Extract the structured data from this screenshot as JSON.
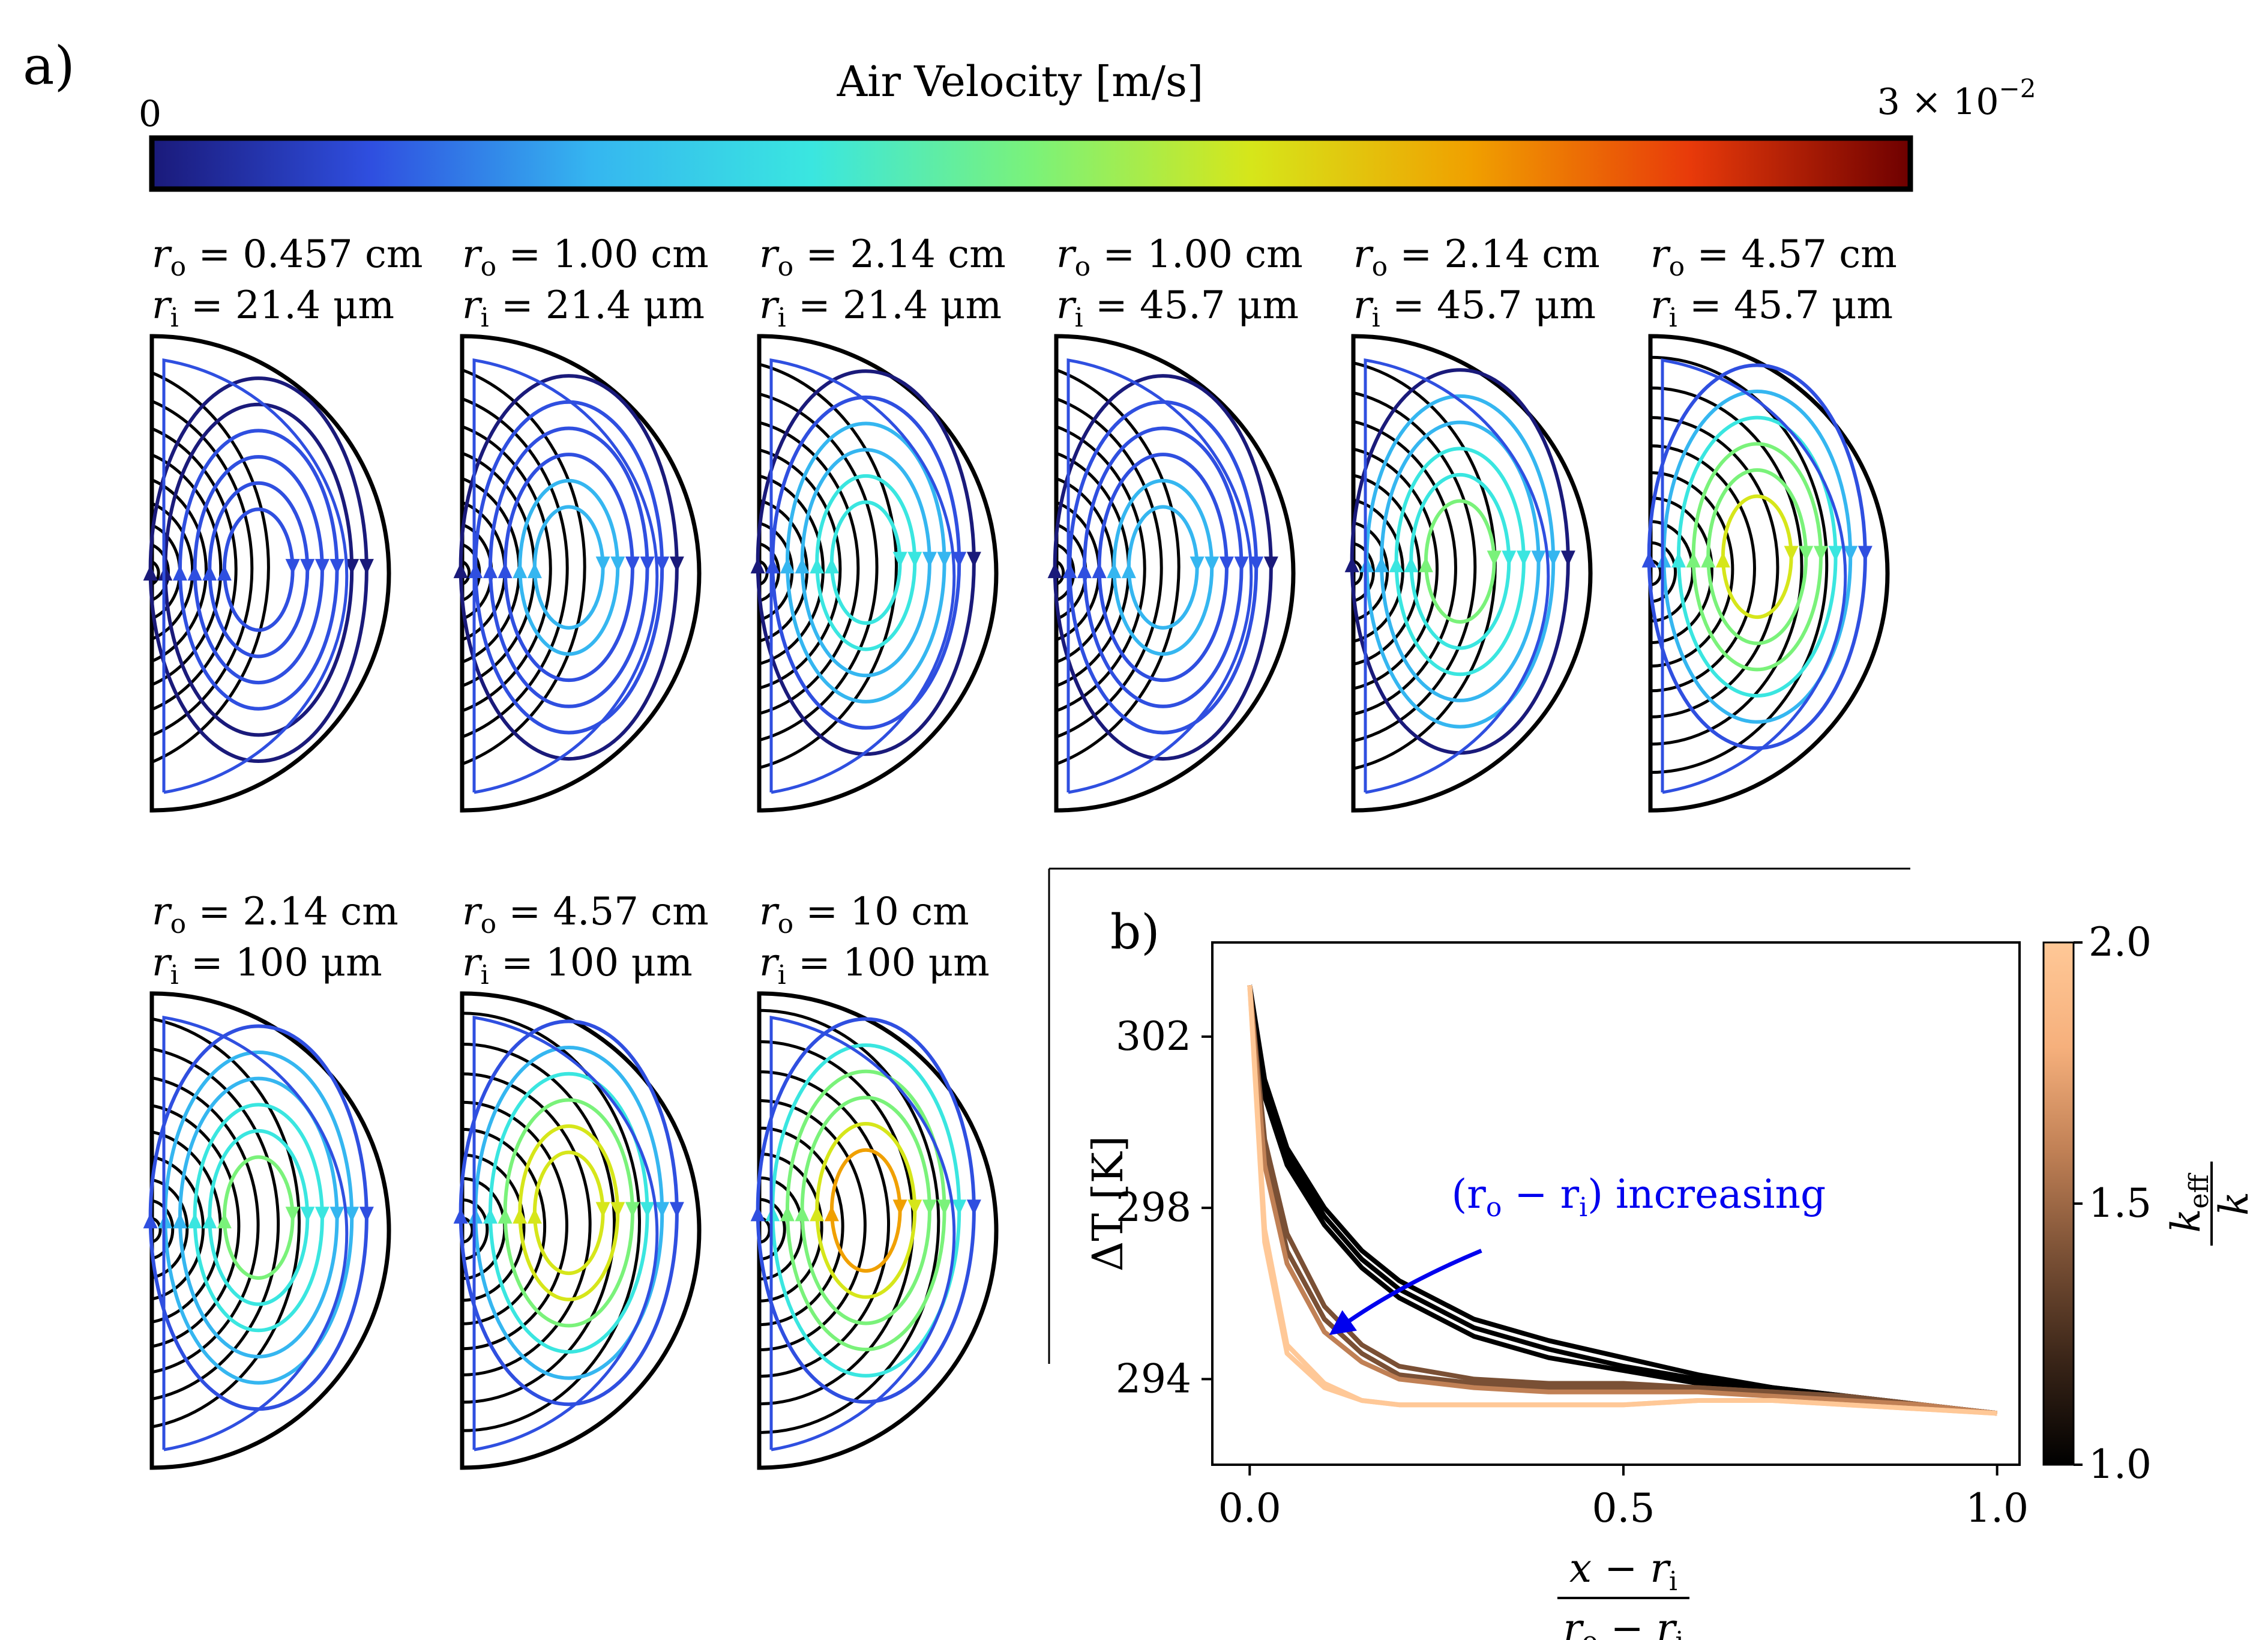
{
  "figure": {
    "panel_a_label": "a)",
    "panel_b_label": "b)"
  },
  "colorbar_a": {
    "title": "Air Velocity [m/s]",
    "min_label": "0",
    "max_label": "3 × 10",
    "max_exponent": "−2",
    "colors": [
      "#1a1a7a",
      "#2f4fe0",
      "#35b6f0",
      "#3ae6e0",
      "#7af27a",
      "#d6e61a",
      "#f0a000",
      "#e83a0a",
      "#6e0000"
    ]
  },
  "panels_a": [
    {
      "ro_label": "r",
      "ro_sub": "o",
      "ro_value": " = 0.457 cm",
      "ri_label": "r",
      "ri_sub": "i",
      "ri_value": " = 21.4 μm",
      "intensity": 0.15
    },
    {
      "ro_label": "r",
      "ro_sub": "o",
      "ro_value": " = 1.00 cm",
      "ri_label": "r",
      "ri_sub": "i",
      "ri_value": " = 21.4 μm",
      "intensity": 0.25
    },
    {
      "ro_label": "r",
      "ro_sub": "o",
      "ro_value": " = 2.14 cm",
      "ri_label": "r",
      "ri_sub": "i",
      "ri_value": " = 21.4 μm",
      "intensity": 0.45
    },
    {
      "ro_label": "r",
      "ro_sub": "o",
      "ro_value": " = 1.00 cm",
      "ri_label": "r",
      "ri_sub": "i",
      "ri_value": " = 45.7 μm",
      "intensity": 0.25
    },
    {
      "ro_label": "r",
      "ro_sub": "o",
      "ro_value": " = 2.14 cm",
      "ri_label": "r",
      "ri_sub": "i",
      "ri_value": " = 45.7 μm",
      "intensity": 0.5
    },
    {
      "ro_label": "r",
      "ro_sub": "o",
      "ro_value": " = 4.57 cm",
      "ri_label": "r",
      "ri_sub": "i",
      "ri_value": " = 45.7 μm",
      "intensity": 0.7
    },
    {
      "ro_label": "r",
      "ro_sub": "o",
      "ro_value": " = 2.14 cm",
      "ri_label": "r",
      "ri_sub": "i",
      "ri_value": " = 100 μm",
      "intensity": 0.55
    },
    {
      "ro_label": "r",
      "ro_sub": "o",
      "ro_value": " = 4.57 cm",
      "ri_label": "r",
      "ri_sub": "i",
      "ri_value": " = 100 μm",
      "intensity": 0.75
    },
    {
      "ro_label": "r",
      "ro_sub": "o",
      "ro_value": " = 10 cm",
      "ri_label": "r",
      "ri_sub": "i",
      "ri_value": " = 100 μm",
      "intensity": 0.85
    }
  ],
  "chart_data": {
    "type": "line",
    "title": "",
    "xlabel_num": "x − r",
    "xlabel_num_sub": "i",
    "xlabel_den": "r",
    "xlabel_den_sub1": "o",
    "xlabel_den_mid": " − r",
    "xlabel_den_sub2": "i",
    "ylabel": "ΔT [K]",
    "xlim": [
      -0.05,
      1.03
    ],
    "ylim": [
      292.0,
      304.2
    ],
    "xticks": [
      0.0,
      0.5,
      1.0
    ],
    "xtick_labels": [
      "0.0",
      "0.5",
      "1.0"
    ],
    "yticks": [
      294,
      298,
      302
    ],
    "ytick_labels": [
      "294",
      "298",
      "302"
    ],
    "colorbar_label_num": "k",
    "colorbar_label_num_sub": "eff",
    "colorbar_label_den": "k",
    "colorbar_range": [
      1.0,
      2.0
    ],
    "colorbar_tick_labels": [
      "1.0",
      "1.5",
      "2.0"
    ],
    "colorbar_colors": [
      "#000000",
      "#3a2518",
      "#7a5035",
      "#c08055",
      "#f6b07c",
      "#ffc897"
    ],
    "annotation": "(r",
    "annotation_sub1": "o",
    "annotation_mid": " − r",
    "annotation_sub2": "i",
    "annotation_end": ") increasing",
    "annotation_color": "#0000ee",
    "series": [
      {
        "name": "keff/k=1.00",
        "keff": 1.0,
        "x": [
          0,
          0.02,
          0.05,
          0.1,
          0.15,
          0.2,
          0.3,
          0.4,
          0.5,
          0.6,
          0.7,
          0.8,
          0.9,
          1.0
        ],
        "values": [
          303.2,
          301.0,
          299.4,
          298.0,
          297.0,
          296.3,
          295.4,
          294.9,
          294.5,
          294.1,
          293.8,
          293.6,
          293.4,
          293.2
        ]
      },
      {
        "name": "keff/k=1.03",
        "keff": 1.03,
        "x": [
          0,
          0.02,
          0.05,
          0.1,
          0.15,
          0.2,
          0.3,
          0.4,
          0.5,
          0.6,
          0.7,
          0.8,
          0.9,
          1.0
        ],
        "values": [
          303.2,
          300.8,
          299.2,
          297.8,
          296.8,
          296.1,
          295.2,
          294.7,
          294.3,
          294.0,
          293.8,
          293.6,
          293.4,
          293.2
        ]
      },
      {
        "name": "keff/k=1.06",
        "keff": 1.06,
        "x": [
          0,
          0.02,
          0.05,
          0.1,
          0.15,
          0.2,
          0.3,
          0.4,
          0.5,
          0.6,
          0.7,
          0.8,
          0.9,
          1.0
        ],
        "values": [
          303.2,
          300.6,
          299.0,
          297.6,
          296.6,
          295.9,
          295.0,
          294.5,
          294.2,
          293.9,
          293.7,
          293.5,
          293.4,
          293.2
        ]
      },
      {
        "name": "keff/k=1.35",
        "keff": 1.35,
        "x": [
          0,
          0.02,
          0.05,
          0.1,
          0.15,
          0.2,
          0.3,
          0.4,
          0.5,
          0.6,
          0.7,
          0.8,
          0.9,
          1.0
        ],
        "values": [
          303.2,
          299.6,
          297.4,
          295.7,
          294.8,
          294.3,
          294.0,
          293.9,
          293.9,
          293.8,
          293.7,
          293.6,
          293.4,
          293.2
        ]
      },
      {
        "name": "keff/k=1.45",
        "keff": 1.45,
        "x": [
          0,
          0.02,
          0.05,
          0.1,
          0.15,
          0.2,
          0.3,
          0.4,
          0.5,
          0.6,
          0.7,
          0.8,
          0.9,
          1.0
        ],
        "values": [
          303.2,
          299.3,
          297.0,
          295.4,
          294.6,
          294.1,
          293.9,
          293.8,
          293.8,
          293.8,
          293.7,
          293.6,
          293.4,
          293.2
        ]
      },
      {
        "name": "keff/k=1.55",
        "keff": 1.55,
        "x": [
          0,
          0.02,
          0.05,
          0.1,
          0.15,
          0.2,
          0.3,
          0.4,
          0.5,
          0.6,
          0.7,
          0.8,
          0.9,
          1.0
        ],
        "values": [
          303.2,
          299.0,
          296.7,
          295.1,
          294.4,
          294.0,
          293.8,
          293.7,
          293.7,
          293.7,
          293.6,
          293.5,
          293.4,
          293.2
        ]
      },
      {
        "name": "keff/k=1.95",
        "keff": 1.95,
        "x": [
          0,
          0.02,
          0.05,
          0.1,
          0.15,
          0.2,
          0.3,
          0.4,
          0.5,
          0.6,
          0.7,
          0.8,
          0.9,
          1.0
        ],
        "values": [
          303.2,
          297.5,
          294.8,
          293.9,
          293.5,
          293.4,
          293.4,
          293.4,
          293.4,
          293.5,
          293.5,
          293.4,
          293.3,
          293.2
        ]
      },
      {
        "name": "keff/k=2.00",
        "keff": 2.0,
        "x": [
          0,
          0.02,
          0.05,
          0.1,
          0.15,
          0.2,
          0.3,
          0.4,
          0.5,
          0.6,
          0.7,
          0.8,
          0.9,
          1.0
        ],
        "values": [
          303.2,
          297.2,
          294.6,
          293.8,
          293.5,
          293.4,
          293.4,
          293.4,
          293.4,
          293.5,
          293.5,
          293.4,
          293.3,
          293.2
        ]
      }
    ]
  }
}
